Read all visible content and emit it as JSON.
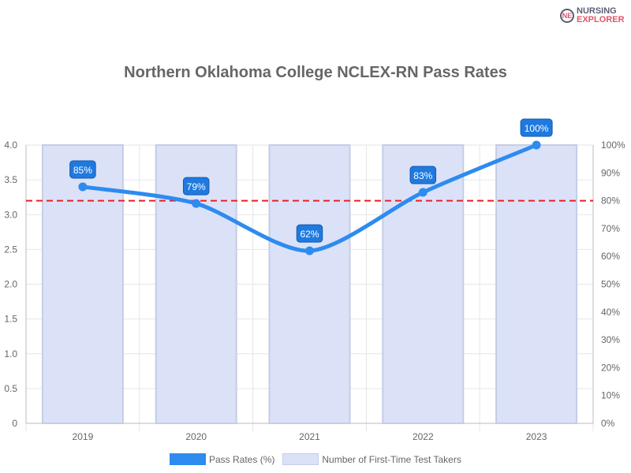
{
  "logo": {
    "line1": "NURSING",
    "line2": "EXPLORER",
    "mark": "NE"
  },
  "chart_data": {
    "type": "bar+line",
    "title": "Northern Oklahoma College NCLEX-RN Pass Rates",
    "categories": [
      "2019",
      "2020",
      "2021",
      "2022",
      "2023"
    ],
    "series": [
      {
        "name": "Pass Rates (%)",
        "type": "line",
        "axis": "right",
        "values": [
          85,
          79,
          62,
          83,
          100
        ],
        "labels": [
          "85%",
          "79%",
          "62%",
          "83%",
          "100%"
        ],
        "color": "#2e8bef"
      },
      {
        "name": "Number of First-Time Test Takers",
        "type": "bar",
        "axis": "left",
        "values": [
          4,
          4,
          4,
          4,
          4
        ],
        "color": "#dbe2f7",
        "border": "#c5cde6"
      }
    ],
    "left_axis": {
      "ylim": [
        0,
        4
      ],
      "ticks": [
        "0",
        "0.5",
        "1.0",
        "1.5",
        "2.0",
        "2.5",
        "3.0",
        "3.5",
        "4.0"
      ]
    },
    "right_axis": {
      "ylim": [
        0,
        100
      ],
      "ticks": [
        "0%",
        "10%",
        "20%",
        "30%",
        "40%",
        "50%",
        "60%",
        "70%",
        "80%",
        "90%",
        "100%"
      ]
    },
    "reference_line": {
      "value": 80,
      "axis": "right",
      "color": "#ee1c25"
    },
    "legend": {
      "placement": "bottom"
    }
  }
}
